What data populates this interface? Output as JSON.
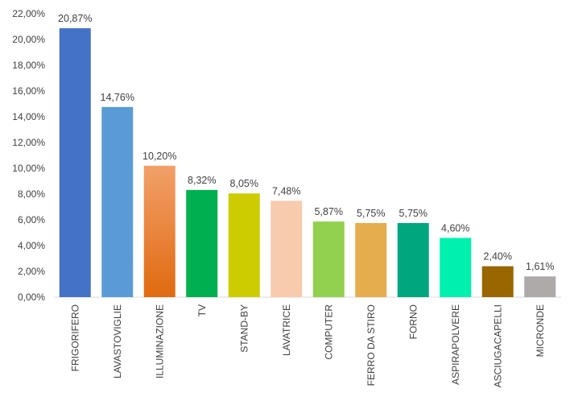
{
  "chart_data": {
    "type": "bar",
    "categories": [
      "FRIGORIFERO",
      "LAVASTOVIGLIE",
      "ILLUMINAZIONE",
      "TV",
      "STAND-BY",
      "LAVATRICE",
      "COMPUTER",
      "FERRO DA STIRO",
      "FORNO",
      "ASPIRAPOLVERE",
      "ASCIUGACAPELLI",
      "MICRONDE"
    ],
    "values": [
      20.87,
      14.76,
      10.2,
      8.32,
      8.05,
      7.48,
      5.87,
      5.75,
      5.75,
      4.6,
      2.4,
      1.61
    ],
    "data_labels": [
      "20,87%",
      "14,76%",
      "10,20%",
      "8,32%",
      "8,05%",
      "7,48%",
      "5,87%",
      "5,75%",
      "5,75%",
      "4,60%",
      "2,40%",
      "1,61%"
    ],
    "colors": [
      "#4472C4",
      "#5B9BD5",
      "#ED7D31",
      "#00B050",
      "#CCCC00",
      "#F8CBAD",
      "#92D050",
      "#E5AD4E",
      "#00A67E",
      "#00F0B0",
      "#996600",
      "#AEAAAA"
    ],
    "y_ticks": [
      "0,00%",
      "2,00%",
      "4,00%",
      "6,00%",
      "8,00%",
      "10,00%",
      "12,00%",
      "14,00%",
      "16,00%",
      "18,00%",
      "20,00%",
      "22,00%"
    ],
    "ylim": [
      0,
      22
    ],
    "grid": false,
    "legend": "none",
    "title": "",
    "xlabel": "",
    "ylabel": ""
  }
}
